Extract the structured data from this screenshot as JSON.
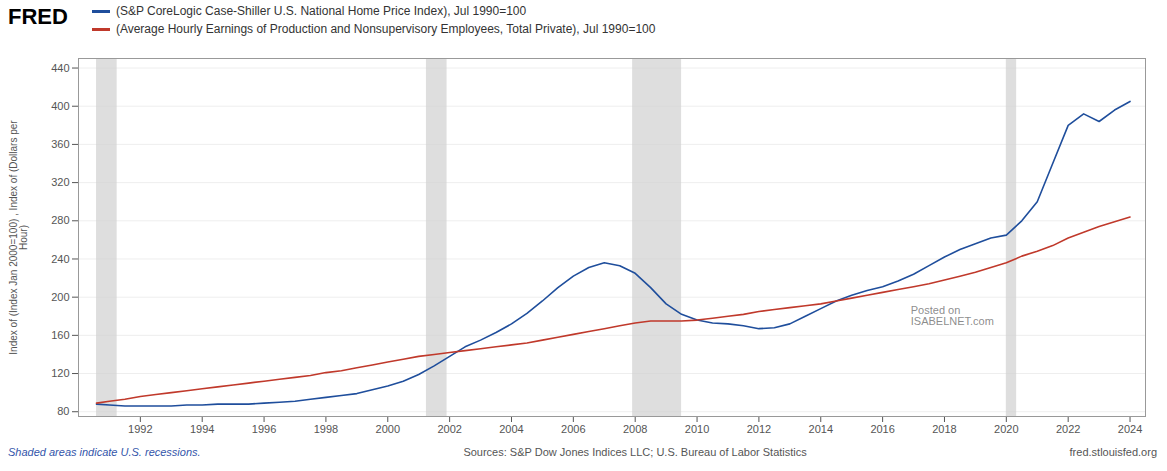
{
  "chart_data": {
    "type": "line",
    "ylabel": "Index of (Index Jan 2000=100) , Index of (Dollars per\nHour)",
    "annotations": [
      "FRED",
      "Posted on\nISABELNET.com",
      "Shaded areas indicate U.S. recessions.",
      "Sources: S&P Dow Jones Indices LLC; U.S. Bureau of Labor Statistics",
      "fred.stlouisfed.org"
    ],
    "legend": "top",
    "grid": "y",
    "xlim": [
      1990.0,
      2024.5
    ],
    "xticks": [
      1992,
      1994,
      1996,
      1998,
      2000,
      2002,
      2004,
      2006,
      2008,
      2010,
      2012,
      2014,
      2016,
      2018,
      2020,
      2022,
      2024
    ],
    "ylim": [
      75,
      450
    ],
    "yticks": [
      80,
      120,
      160,
      200,
      240,
      280,
      320,
      360,
      400,
      440
    ],
    "recession_bands": [
      [
        1990.583,
        1991.25
      ],
      [
        2001.25,
        2001.917
      ],
      [
        2007.917,
        2009.5
      ],
      [
        2020.0,
        2020.333
      ]
    ],
    "x": [
      1990.583,
      1991.0,
      1991.5,
      1992.0,
      1992.5,
      1993.0,
      1993.5,
      1994.0,
      1994.5,
      1995.0,
      1995.5,
      1996.0,
      1996.5,
      1997.0,
      1997.5,
      1998.0,
      1998.5,
      1999.0,
      1999.5,
      2000.0,
      2000.5,
      2001.0,
      2001.5,
      2002.0,
      2002.5,
      2003.0,
      2003.5,
      2004.0,
      2004.5,
      2005.0,
      2005.5,
      2006.0,
      2006.5,
      2007.0,
      2007.5,
      2008.0,
      2008.5,
      2009.0,
      2009.5,
      2010.0,
      2010.5,
      2011.0,
      2011.5,
      2012.0,
      2012.5,
      2013.0,
      2013.5,
      2014.0,
      2014.5,
      2015.0,
      2015.5,
      2016.0,
      2016.5,
      2017.0,
      2017.5,
      2018.0,
      2018.5,
      2019.0,
      2019.5,
      2020.0,
      2020.5,
      2021.0,
      2021.5,
      2022.0,
      2022.5,
      2023.0,
      2023.5,
      2024.0
    ],
    "series": [
      {
        "name": "(S&P CoreLogic Case-Shiller U.S. National Home Price Index), Jul 1990=100",
        "color": "#1f4e9c",
        "values": [
          88,
          87,
          86,
          86,
          86,
          86,
          87,
          87,
          88,
          88,
          88,
          89,
          90,
          91,
          93,
          95,
          97,
          99,
          103,
          107,
          112,
          119,
          128,
          138,
          148,
          155,
          163,
          172,
          183,
          196,
          210,
          222,
          231,
          236,
          233,
          225,
          210,
          193,
          182,
          176,
          173,
          172,
          170,
          167,
          168,
          172,
          180,
          188,
          196,
          202,
          207,
          211,
          217,
          224,
          233,
          242,
          250,
          256,
          262,
          265,
          280,
          300,
          340,
          380,
          392,
          384,
          396,
          405
        ]
      },
      {
        "name": "(Average Hourly Earnings of Production and Nonsupervisory Employees, Total Private), Jul 1990=100",
        "color": "#c0392b",
        "values": [
          89,
          91,
          93,
          96,
          98,
          100,
          102,
          104,
          106,
          108,
          110,
          112,
          114,
          116,
          118,
          121,
          123,
          126,
          129,
          132,
          135,
          138,
          140,
          142,
          144,
          146,
          148,
          150,
          152,
          155,
          158,
          161,
          164,
          167,
          170,
          173,
          175,
          175,
          175,
          176,
          178,
          180,
          182,
          185,
          187,
          189,
          191,
          193,
          196,
          199,
          202,
          205,
          208,
          211,
          214,
          218,
          222,
          226,
          231,
          236,
          243,
          248,
          254,
          262,
          268,
          274,
          279,
          284
        ]
      }
    ]
  }
}
